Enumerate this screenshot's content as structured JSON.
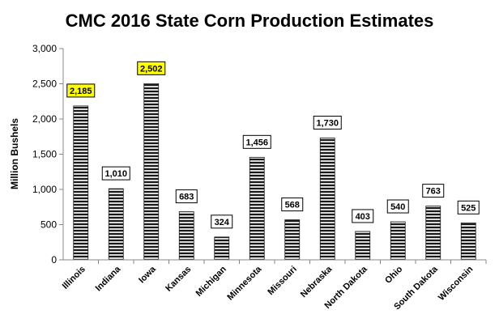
{
  "chart_data": {
    "type": "bar",
    "title": "CMC 2016 State Corn Production Estimates",
    "xlabel": "",
    "ylabel": "Million Bushels",
    "ylim": [
      0,
      3000
    ],
    "yticks": [
      "0",
      "500",
      "1,000",
      "1,500",
      "2,000",
      "2,500",
      "3,000"
    ],
    "ytick_values": [
      0,
      500,
      1000,
      1500,
      2000,
      2500,
      3000
    ],
    "grid": false,
    "categories": [
      "Illinois",
      "Indiana",
      "Iowa",
      "Kansas",
      "Michigan",
      "Minnesota",
      "Missouri",
      "Nebraska",
      "North Dakota",
      "Ohio",
      "South Dakota",
      "Wisconsin"
    ],
    "values": [
      2185,
      1010,
      2502,
      683,
      324,
      1456,
      568,
      1730,
      403,
      540,
      763,
      525
    ],
    "data_labels": [
      "2,185",
      "1,010",
      "2,502",
      "683",
      "324",
      "1,456",
      "568",
      "1,730",
      "403",
      "540",
      "763",
      "525"
    ],
    "highlighted": [
      "Illinois",
      "Iowa"
    ],
    "colors": {
      "bar_fill": "#d9d9d9",
      "bar_stripe": "#1a1a1a",
      "label_highlight": "#ffff00",
      "label_normal": "#ffffff",
      "axis": "#888888"
    }
  }
}
